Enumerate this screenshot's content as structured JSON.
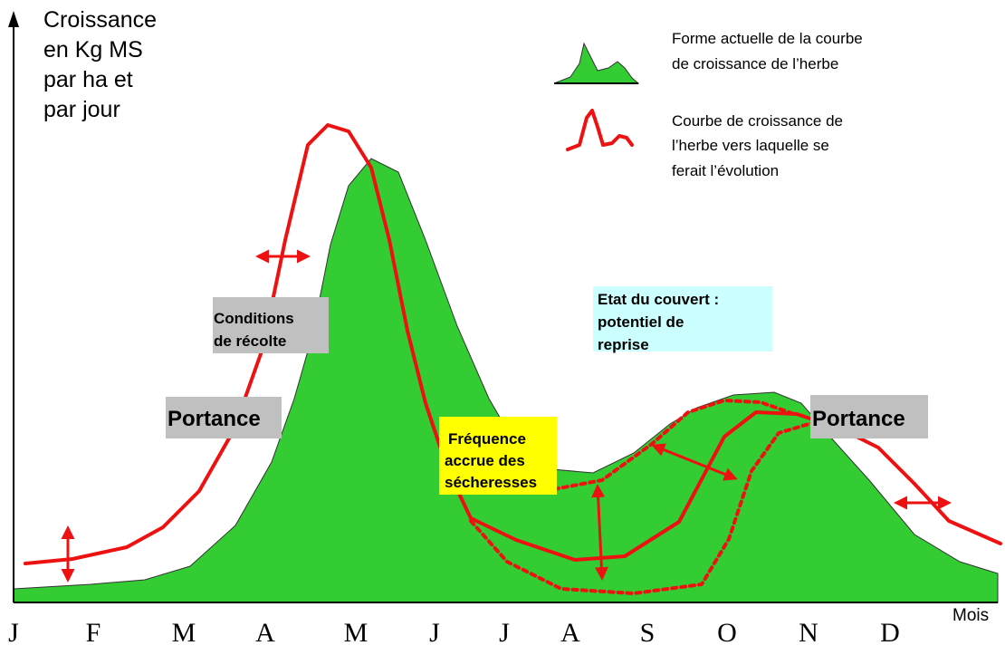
{
  "axis": {
    "y_label": [
      "Croissance",
      "en Kg MS",
      "par ha et",
      "par jour"
    ],
    "x_label": "Mois",
    "months": [
      "J",
      "F",
      "M",
      "A",
      "M",
      "J",
      "J",
      "A",
      "S",
      "O",
      "N",
      "D"
    ]
  },
  "legend": [
    {
      "label": [
        "Forme actuelle de la courbe",
        "de croissance de l’herbe"
      ]
    },
    {
      "label": [
        "Courbe de croissance de",
        "l’herbe vers laquelle se",
        "ferait l’évolution"
      ]
    }
  ],
  "annotations": {
    "conditions": [
      "Conditions",
      "de récolte"
    ],
    "portance_left": "Portance",
    "portance_right": "Portance",
    "etat": [
      "Etat du couvert :",
      "potentiel de",
      "reprise"
    ],
    "frequence": [
      "Fréquence",
      "accrue des",
      "sécheresses"
    ]
  }
}
